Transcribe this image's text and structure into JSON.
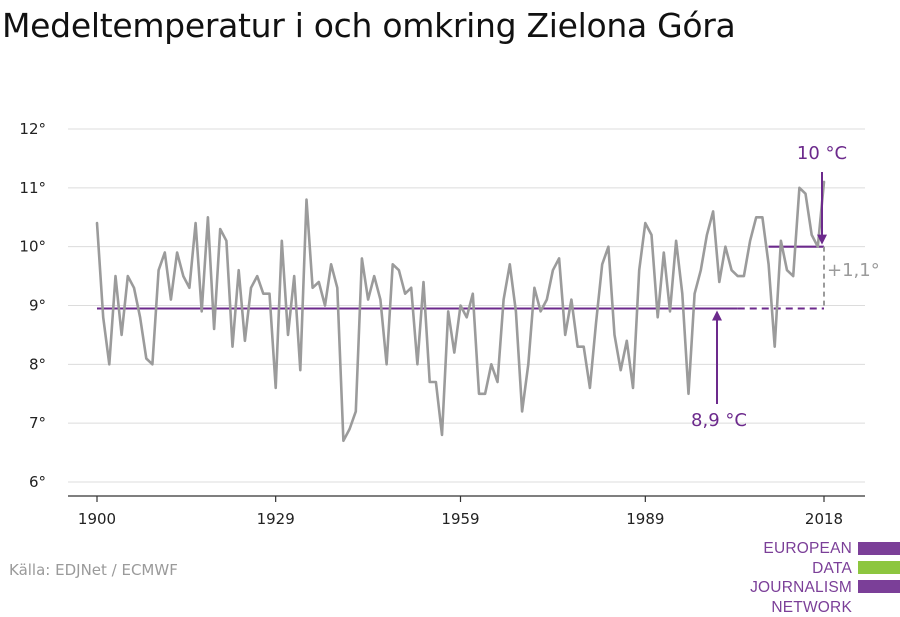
{
  "title": "Medeltemperatur i och omkring Zielona Góra",
  "source": "Källa: EDJNet / ECMWF",
  "logo": {
    "lines": [
      "EUROPEAN",
      "DATA JOURNALISM",
      "NETWORK"
    ],
    "colors": [
      "#7b3f98",
      "#8dc63f",
      "#7b3f98"
    ]
  },
  "chart_data": {
    "type": "line",
    "title": "Medeltemperatur i och omkring Zielona Góra",
    "xlabel": "",
    "ylabel": "",
    "xlim": [
      1900,
      2018
    ],
    "ylim": [
      6,
      12
    ],
    "grid": true,
    "x_ticks": [
      1900,
      1929,
      1959,
      1989,
      2018
    ],
    "x_tick_labels": [
      "1900",
      "1929",
      "1959",
      "1989",
      "2018"
    ],
    "y_ticks": [
      6,
      7,
      8,
      9,
      10,
      11,
      12
    ],
    "y_tick_labels": [
      "6°",
      "7°",
      "8°",
      "9°",
      "10°",
      "11°",
      "12°"
    ],
    "series": [
      {
        "color": "#9b9b9b",
        "x": [
          1900,
          1901,
          1902,
          1903,
          1904,
          1905,
          1906,
          1907,
          1908,
          1909,
          1910,
          1911,
          1912,
          1913,
          1914,
          1915,
          1916,
          1917,
          1918,
          1919,
          1920,
          1921,
          1922,
          1923,
          1924,
          1925,
          1926,
          1927,
          1928,
          1929,
          1930,
          1931,
          1932,
          1933,
          1934,
          1935,
          1936,
          1937,
          1938,
          1939,
          1940,
          1941,
          1942,
          1943,
          1944,
          1945,
          1946,
          1947,
          1948,
          1949,
          1950,
          1951,
          1952,
          1953,
          1954,
          1955,
          1956,
          1957,
          1958,
          1959,
          1960,
          1961,
          1962,
          1963,
          1964,
          1965,
          1966,
          1967,
          1968,
          1969,
          1970,
          1971,
          1972,
          1973,
          1974,
          1975,
          1976,
          1977,
          1978,
          1979,
          1980,
          1981,
          1982,
          1983,
          1984,
          1985,
          1986,
          1987,
          1988,
          1989,
          1990,
          1991,
          1992,
          1993,
          1994,
          1995,
          1996,
          1997,
          1998,
          1999,
          2000,
          2001,
          2002,
          2003,
          2004,
          2005,
          2006,
          2007,
          2008,
          2009,
          2010,
          2011,
          2012,
          2013,
          2014,
          2015,
          2016,
          2017,
          2018
        ],
        "values": [
          10.4,
          8.8,
          8.0,
          9.5,
          8.5,
          9.5,
          9.3,
          8.8,
          8.1,
          8.0,
          9.6,
          9.9,
          9.1,
          9.9,
          9.5,
          9.3,
          10.4,
          8.9,
          10.5,
          8.6,
          10.3,
          10.1,
          8.3,
          9.6,
          8.4,
          9.3,
          9.5,
          9.2,
          9.2,
          7.6,
          10.1,
          8.5,
          9.5,
          7.9,
          10.8,
          9.3,
          9.4,
          9.0,
          9.7,
          9.3,
          6.7,
          6.9,
          7.2,
          9.8,
          9.1,
          9.5,
          9.1,
          8.0,
          9.7,
          9.6,
          9.2,
          9.3,
          8.0,
          9.4,
          7.7,
          7.7,
          6.8,
          8.9,
          8.2,
          9.0,
          8.8,
          9.2,
          7.5,
          7.5,
          8.0,
          7.7,
          9.1,
          9.7,
          8.9,
          7.2,
          8.0,
          9.3,
          8.9,
          9.1,
          9.6,
          9.8,
          8.5,
          9.1,
          8.3,
          8.3,
          7.6,
          8.7,
          9.7,
          10.0,
          8.5,
          7.9,
          8.4,
          7.6,
          9.6,
          10.4,
          10.2,
          8.8,
          9.9,
          8.9,
          10.1,
          9.2,
          7.5,
          9.2,
          9.6,
          10.2,
          10.6,
          9.4,
          10.0,
          9.6,
          9.5,
          9.5,
          10.1,
          10.5,
          10.5,
          9.7,
          8.3,
          10.1,
          9.6,
          9.5,
          11.0,
          10.9,
          10.2,
          10.0,
          11.1
        ]
      }
    ],
    "reference_lines": [
      {
        "label": "8,9 °C",
        "value": 8.95,
        "from": 1900,
        "to": 2018,
        "color": "#6c2a8c"
      },
      {
        "label": "10 °C",
        "value": 10.0,
        "from": 2009,
        "to": 2018,
        "color": "#6c2a8c"
      }
    ],
    "annotations": [
      {
        "text": "10 °C",
        "color": "#6c2a8c"
      },
      {
        "text": "8,9 °C",
        "color": "#6c2a8c"
      },
      {
        "text": "+1,1°",
        "color": "#9b9b9b"
      }
    ]
  }
}
